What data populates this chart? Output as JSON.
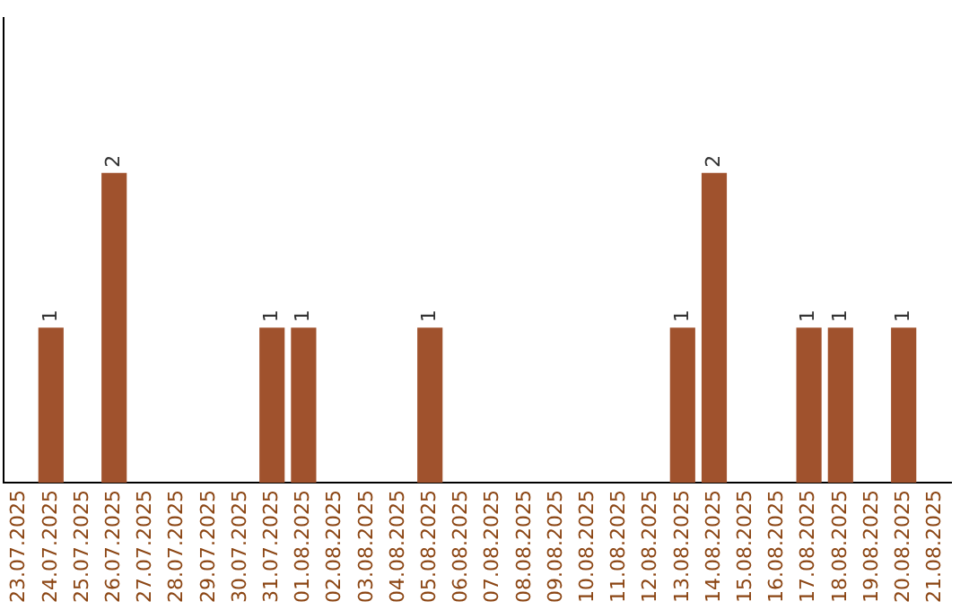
{
  "chart_data": {
    "type": "bar",
    "categories": [
      "23.07.2025",
      "24.07.2025",
      "25.07.2025",
      "26.07.2025",
      "27.07.2025",
      "28.07.2025",
      "29.07.2025",
      "30.07.2025",
      "31.07.2025",
      "01.08.2025",
      "02.08.2025",
      "03.08.2025",
      "04.08.2025",
      "05.08.2025",
      "06.08.2025",
      "07.08.2025",
      "08.08.2025",
      "09.08.2025",
      "10.08.2025",
      "11.08.2025",
      "12.08.2025",
      "13.08.2025",
      "14.08.2025",
      "15.08.2025",
      "16.08.2025",
      "17.08.2025",
      "18.08.2025",
      "19.08.2025",
      "20.08.2025",
      "21.08.2025"
    ],
    "values": [
      0,
      1,
      0,
      2,
      0,
      0,
      0,
      0,
      1,
      1,
      0,
      0,
      0,
      1,
      0,
      0,
      0,
      0,
      0,
      0,
      0,
      1,
      2,
      0,
      0,
      1,
      1,
      0,
      1,
      0
    ],
    "value_labels": [
      null,
      "1",
      null,
      "2",
      null,
      null,
      null,
      null,
      "1",
      "1",
      null,
      null,
      null,
      "1",
      null,
      null,
      null,
      null,
      null,
      null,
      null,
      "1",
      "2",
      null,
      null,
      "1",
      "1",
      null,
      "1",
      null
    ],
    "color": "#a0522d",
    "grid": false,
    "legend": false
  }
}
